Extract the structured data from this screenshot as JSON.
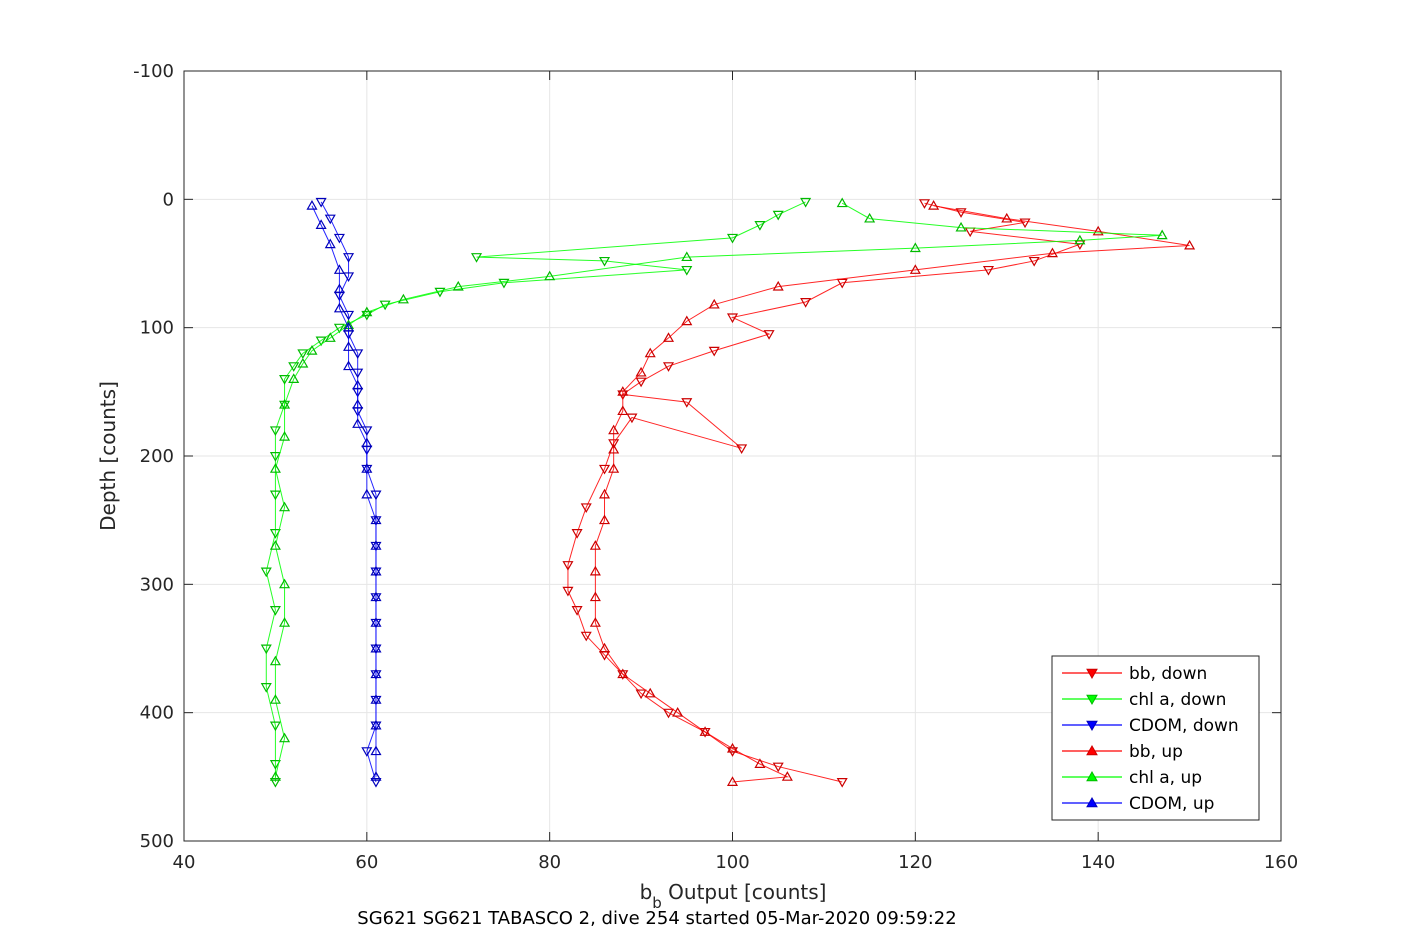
{
  "chart_data": {
    "type": "scatter",
    "title": "",
    "caption": "SG621 SG621 TABASCO 2, dive 254 started 05-Mar-2020 09:59:22",
    "xlabel": {
      "main": "b",
      "sub": "b",
      "rest": " Output [counts]"
    },
    "ylabel": "Depth [counts]",
    "xlim": [
      40,
      160
    ],
    "ylim": [
      500,
      -100
    ],
    "y_reversed": true,
    "grid": true,
    "xticks": [
      "40",
      "60",
      "80",
      "100",
      "120",
      "140",
      "160"
    ],
    "yticks": [
      "-100",
      "0",
      "100",
      "200",
      "300",
      "400",
      "500"
    ],
    "legend_position": "bottom-right",
    "series": [
      {
        "name": "bb, down",
        "color": "#ff0000",
        "edge": "#cc0000",
        "marker": "down",
        "points": [
          [
            121,
            3
          ],
          [
            125,
            10
          ],
          [
            132,
            18
          ],
          [
            126,
            25
          ],
          [
            138,
            35
          ],
          [
            133,
            48
          ],
          [
            128,
            55
          ],
          [
            112,
            65
          ],
          [
            108,
            80
          ],
          [
            100,
            92
          ],
          [
            104,
            105
          ],
          [
            98,
            118
          ],
          [
            93,
            130
          ],
          [
            90,
            142
          ],
          [
            88,
            152
          ],
          [
            95,
            158
          ],
          [
            101,
            194
          ],
          [
            89,
            170
          ],
          [
            87,
            190
          ],
          [
            86,
            210
          ],
          [
            84,
            240
          ],
          [
            83,
            260
          ],
          [
            82,
            285
          ],
          [
            82,
            305
          ],
          [
            83,
            320
          ],
          [
            84,
            340
          ],
          [
            86,
            355
          ],
          [
            88,
            370
          ],
          [
            90,
            385
          ],
          [
            93,
            400
          ],
          [
            97,
            415
          ],
          [
            100,
            430
          ],
          [
            105,
            442
          ],
          [
            112,
            454
          ]
        ]
      },
      {
        "name": "chl a, down",
        "color": "#00ff00",
        "edge": "#00bb00",
        "marker": "down",
        "points": [
          [
            108,
            2
          ],
          [
            105,
            12
          ],
          [
            103,
            20
          ],
          [
            100,
            30
          ],
          [
            72,
            45
          ],
          [
            86,
            48
          ],
          [
            95,
            55
          ],
          [
            75,
            65
          ],
          [
            68,
            72
          ],
          [
            62,
            82
          ],
          [
            60,
            90
          ],
          [
            57,
            100
          ],
          [
            55,
            110
          ],
          [
            53,
            120
          ],
          [
            52,
            130
          ],
          [
            51,
            140
          ],
          [
            51,
            160
          ],
          [
            50,
            180
          ],
          [
            50,
            200
          ],
          [
            50,
            230
          ],
          [
            50,
            260
          ],
          [
            49,
            290
          ],
          [
            50,
            320
          ],
          [
            49,
            350
          ],
          [
            49,
            380
          ],
          [
            50,
            410
          ],
          [
            50,
            440
          ],
          [
            50,
            454
          ]
        ]
      },
      {
        "name": "CDOM, down",
        "color": "#0000ff",
        "edge": "#0000bb",
        "marker": "down",
        "points": [
          [
            55,
            2
          ],
          [
            56,
            15
          ],
          [
            57,
            30
          ],
          [
            58,
            45
          ],
          [
            58,
            60
          ],
          [
            57,
            75
          ],
          [
            58,
            90
          ],
          [
            58,
            105
          ],
          [
            59,
            120
          ],
          [
            59,
            135
          ],
          [
            59,
            150
          ],
          [
            59,
            165
          ],
          [
            60,
            180
          ],
          [
            60,
            195
          ],
          [
            60,
            210
          ],
          [
            61,
            230
          ],
          [
            61,
            250
          ],
          [
            61,
            270
          ],
          [
            61,
            290
          ],
          [
            61,
            310
          ],
          [
            61,
            330
          ],
          [
            61,
            350
          ],
          [
            61,
            370
          ],
          [
            61,
            390
          ],
          [
            61,
            410
          ],
          [
            60,
            430
          ],
          [
            61,
            454
          ]
        ]
      },
      {
        "name": "bb, up",
        "color": "#ff0000",
        "edge": "#cc0000",
        "marker": "up",
        "points": [
          [
            122,
            5
          ],
          [
            130,
            15
          ],
          [
            140,
            25
          ],
          [
            150,
            36
          ],
          [
            135,
            42
          ],
          [
            120,
            55
          ],
          [
            105,
            68
          ],
          [
            98,
            82
          ],
          [
            95,
            95
          ],
          [
            93,
            108
          ],
          [
            91,
            120
          ],
          [
            90,
            135
          ],
          [
            88,
            150
          ],
          [
            88,
            165
          ],
          [
            87,
            180
          ],
          [
            87,
            195
          ],
          [
            87,
            210
          ],
          [
            86,
            230
          ],
          [
            86,
            250
          ],
          [
            85,
            270
          ],
          [
            85,
            290
          ],
          [
            85,
            310
          ],
          [
            85,
            330
          ],
          [
            86,
            350
          ],
          [
            88,
            370
          ],
          [
            91,
            385
          ],
          [
            94,
            400
          ],
          [
            97,
            415
          ],
          [
            100,
            428
          ],
          [
            103,
            440
          ],
          [
            106,
            450
          ],
          [
            100,
            454
          ]
        ]
      },
      {
        "name": "chl a, up",
        "color": "#00ff00",
        "edge": "#00bb00",
        "marker": "up",
        "points": [
          [
            112,
            3
          ],
          [
            115,
            15
          ],
          [
            125,
            22
          ],
          [
            147,
            28
          ],
          [
            138,
            32
          ],
          [
            120,
            38
          ],
          [
            95,
            45
          ],
          [
            80,
            60
          ],
          [
            70,
            68
          ],
          [
            64,
            78
          ],
          [
            60,
            88
          ],
          [
            58,
            98
          ],
          [
            56,
            108
          ],
          [
            54,
            118
          ],
          [
            53,
            128
          ],
          [
            52,
            140
          ],
          [
            51,
            160
          ],
          [
            51,
            185
          ],
          [
            50,
            210
          ],
          [
            51,
            240
          ],
          [
            50,
            270
          ],
          [
            51,
            300
          ],
          [
            51,
            330
          ],
          [
            50,
            360
          ],
          [
            50,
            390
          ],
          [
            51,
            420
          ],
          [
            50,
            450
          ]
        ]
      },
      {
        "name": "CDOM, up",
        "color": "#0000ff",
        "edge": "#0000bb",
        "marker": "up",
        "points": [
          [
            54,
            5
          ],
          [
            55,
            20
          ],
          [
            56,
            35
          ],
          [
            57,
            55
          ],
          [
            57,
            70
          ],
          [
            57,
            85
          ],
          [
            58,
            100
          ],
          [
            58,
            115
          ],
          [
            58,
            130
          ],
          [
            59,
            145
          ],
          [
            59,
            160
          ],
          [
            59,
            175
          ],
          [
            60,
            190
          ],
          [
            60,
            210
          ],
          [
            60,
            230
          ],
          [
            61,
            250
          ],
          [
            61,
            270
          ],
          [
            61,
            290
          ],
          [
            61,
            310
          ],
          [
            61,
            330
          ],
          [
            61,
            350
          ],
          [
            61,
            370
          ],
          [
            61,
            390
          ],
          [
            61,
            410
          ],
          [
            61,
            430
          ],
          [
            61,
            450
          ]
        ]
      }
    ]
  }
}
